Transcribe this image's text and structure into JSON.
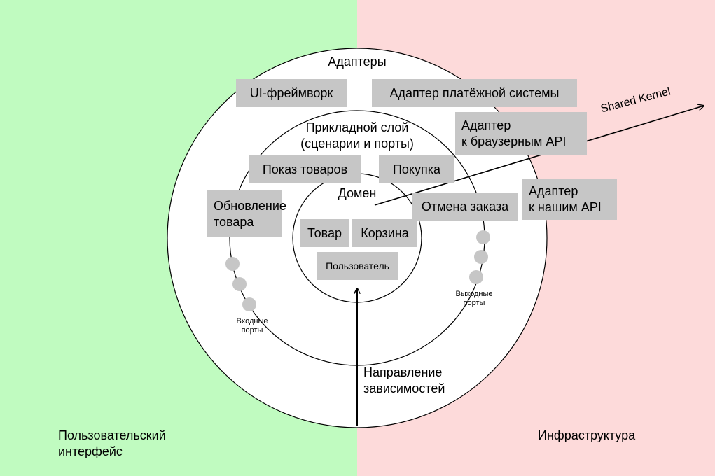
{
  "regions": {
    "left_line1": "Пользовательский",
    "left_line2": "интерфейс",
    "right": "Инфраструктура"
  },
  "rings": {
    "adapters": "Адаптеры",
    "application_line1": "Прикладной слой",
    "application_line2": "(сценарии и порты)",
    "domain": "Домен"
  },
  "adapter_boxes": {
    "ui_framework": "UI-фреймворк",
    "payment": "Адаптер платёжной системы",
    "browser_api_line1": "Адаптер",
    "browser_api_line2": "к браузерным API",
    "our_api_line1": "Адаптер",
    "our_api_line2": "к нашим API"
  },
  "application_boxes": {
    "show_products": "Показ товаров",
    "purchase": "Покупка",
    "cancel_order": "Отмена заказа",
    "update_line1": "Обновление",
    "update_line2": "товара"
  },
  "domain_boxes": {
    "product": "Товар",
    "cart": "Корзина",
    "user": "Пользователь"
  },
  "ports": {
    "input_line1": "Входные",
    "input_line2": "порты",
    "output_line1": "Выходные",
    "output_line2": "порты"
  },
  "arrows": {
    "dependency_line1": "Направление",
    "dependency_line2": "зависимостей",
    "shared_kernel": "Shared Kernel"
  },
  "colors": {
    "ui_background": "#c0fbc0",
    "infrastructure_background": "#fddada",
    "box_fill": "#c6c6c6",
    "port_fill": "#c6c6c6"
  }
}
